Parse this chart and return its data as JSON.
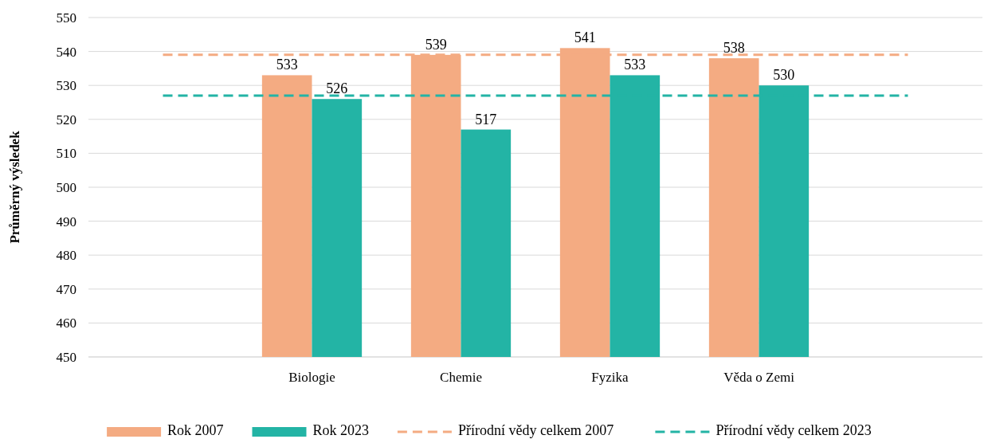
{
  "chart_data": {
    "type": "bar",
    "ylabel": "Průměrný výsledek",
    "categories": [
      null,
      "Biologie",
      "Chemie",
      "Fyzika",
      "Věda o Zemi",
      null
    ],
    "series": [
      {
        "name": "Rok 2007",
        "color": "#f4ab82",
        "values": [
          null,
          533,
          539,
          541,
          538,
          null
        ],
        "value_labels": [
          null,
          "533",
          "539",
          "541",
          "538",
          null
        ]
      },
      {
        "name": "Rok 2023",
        "color": "#23b4a5",
        "values": [
          null,
          526,
          517,
          533,
          530,
          null
        ],
        "value_labels": [
          null,
          "526",
          "517",
          "533",
          "530",
          null
        ]
      },
      {
        "name": "Přírodní vědy celkem 2007",
        "type": "line",
        "color": "#f4ab82",
        "line_style": "dashed",
        "values": [
          539,
          539,
          539,
          539,
          539,
          539
        ]
      },
      {
        "name": "Přírodní vědy celkem 2023",
        "type": "line",
        "color": "#23b4a5",
        "line_style": "dashed",
        "values": [
          527,
          527,
          527,
          527,
          527,
          527
        ]
      }
    ],
    "ylim": [
      450,
      550
    ],
    "yticks": [
      450,
      460,
      470,
      480,
      490,
      500,
      510,
      520,
      530,
      540,
      550
    ],
    "grid": "y",
    "legend": "bottom",
    "marker": "none"
  }
}
